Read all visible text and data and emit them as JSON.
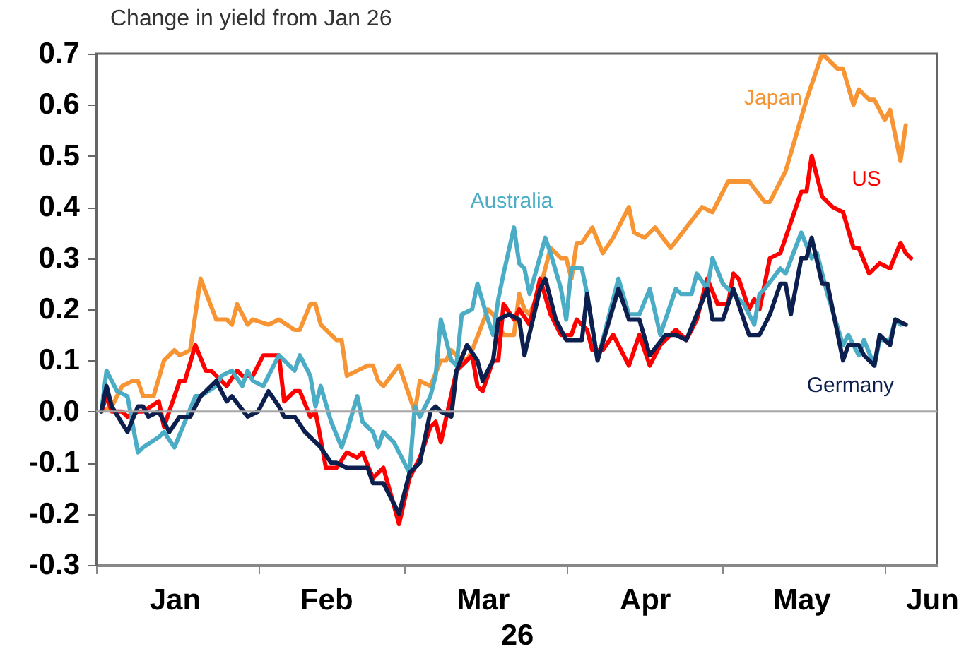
{
  "chart_data": {
    "type": "line",
    "title": "Change in yield from Jan 26",
    "xlabel": "26",
    "xlim": [
      "--01-01",
      "--06-11"
    ],
    "xticks": [
      {
        "value": "--01-01",
        "label": null
      },
      {
        "value": "--02-01",
        "label": null
      },
      {
        "value": "--03-01",
        "label": null
      },
      {
        "value": "--04-01",
        "label": null
      },
      {
        "value": "--05-01",
        "label": null
      },
      {
        "value": "--06-01",
        "label": null
      },
      {
        "value": "--01-16",
        "label": "Jan"
      },
      {
        "value": "--02-14",
        "label": "Feb"
      },
      {
        "value": "--03-16",
        "label": "Mar"
      },
      {
        "value": "--04-16",
        "label": "Apr"
      },
      {
        "value": "--05-16",
        "label": "May"
      },
      {
        "value": "--06-10",
        "label": "Jun"
      }
    ],
    "ylim": [
      -0.3,
      0.7
    ],
    "yticks": [
      -0.3,
      -0.2,
      -0.1,
      {
        "value": 0,
        "label": "0.0"
      },
      0.1,
      0.2,
      0.3,
      0.4,
      0.5,
      0.6,
      0.7
    ],
    "line_style": "solid",
    "ref_lines": [
      {
        "axis": "y",
        "value": 0,
        "color": "#a6a6a6"
      }
    ],
    "series": [
      {
        "name": "Japan",
        "color": "#f79433",
        "x": [
          "--01-02",
          "--01-04",
          "--01-06",
          "--01-08",
          "--01-09",
          "--01-10",
          "--01-12",
          "--01-14",
          "--01-16",
          "--01-17",
          "--01-19",
          "--01-21",
          "--01-24",
          "--01-26",
          "--01-27",
          "--01-28",
          "--01-30",
          "--01-31",
          "--02-03",
          "--02-05",
          "--02-08",
          "--02-09",
          "--02-11",
          "--02-12",
          "--02-13",
          "--02-14",
          "--02-16",
          "--02-17",
          "--02-18",
          "--02-20",
          "--02-22",
          "--02-23",
          "--02-24",
          "--02-25",
          "--02-28",
          "--03-03",
          "--03-04",
          "--03-06",
          "--03-08",
          "--03-09",
          "--03-10",
          "--03-11",
          "--03-13",
          "--03-14",
          "--03-17",
          "--03-18",
          "--03-20",
          "--03-22",
          "--03-23",
          "--03-24",
          "--03-25",
          "--03-27",
          "--03-29",
          "--03-31",
          "--04-01",
          "--04-02",
          "--04-03",
          "--04-04",
          "--04-06",
          "--04-08",
          "--04-10",
          "--04-13",
          "--04-14",
          "--04-16",
          "--04-18",
          "--04-21",
          "--04-24",
          "--04-27",
          "--04-29",
          "--05-02",
          "--05-06",
          "--05-09",
          "--05-10",
          "--05-13",
          "--05-15",
          "--05-17",
          "--05-20",
          "--05-21",
          "--05-23",
          "--05-24",
          "--05-26",
          "--05-27",
          "--05-29",
          "--05-30",
          "--06-01",
          "--06-02",
          "--06-04",
          "--06-05"
        ],
        "values": [
          0.0,
          0.01,
          0.05,
          0.06,
          0.06,
          0.03,
          0.03,
          0.1,
          0.12,
          0.11,
          0.12,
          0.26,
          0.18,
          0.18,
          0.17,
          0.21,
          0.17,
          0.18,
          0.17,
          0.18,
          0.16,
          0.16,
          0.21,
          0.21,
          0.17,
          0.16,
          0.14,
          0.14,
          0.07,
          0.08,
          0.09,
          0.09,
          0.06,
          0.05,
          0.09,
          0.0,
          0.06,
          0.05,
          0.1,
          0.1,
          0.12,
          0.11,
          0.1,
          0.12,
          0.2,
          0.19,
          0.15,
          0.15,
          0.23,
          0.2,
          0.19,
          0.24,
          0.32,
          0.3,
          0.3,
          0.26,
          0.33,
          0.33,
          0.36,
          0.31,
          0.34,
          0.4,
          0.35,
          0.34,
          0.36,
          0.32,
          0.36,
          0.4,
          0.39,
          0.45,
          0.45,
          0.41,
          0.41,
          0.47,
          0.54,
          0.61,
          0.7,
          0.69,
          0.67,
          0.67,
          0.6,
          0.63,
          0.61,
          0.61,
          0.57,
          0.59,
          0.49,
          0.56
        ]
      },
      {
        "name": "US",
        "color": "#ff0000",
        "x": [
          "--01-02",
          "--01-03",
          "--01-04",
          "--01-06",
          "--01-07",
          "--01-09",
          "--01-10",
          "--01-13",
          "--01-14",
          "--01-17",
          "--01-18",
          "--01-20",
          "--01-22",
          "--01-23",
          "--01-26",
          "--01-28",
          "--01-29",
          "--01-31",
          "--02-02",
          "--02-03",
          "--02-05",
          "--02-06",
          "--02-08",
          "--02-09",
          "--02-11",
          "--02-12",
          "--02-14",
          "--02-16",
          "--02-18",
          "--02-20",
          "--02-21",
          "--02-23",
          "--02-25",
          "--02-28",
          "--03-02",
          "--03-04",
          "--03-06",
          "--03-07",
          "--03-08",
          "--03-11",
          "--03-14",
          "--03-15",
          "--03-16",
          "--03-18",
          "--03-19",
          "--03-20",
          "--03-22",
          "--03-23",
          "--03-25",
          "--03-27",
          "--03-29",
          "--03-31",
          "--04-02",
          "--04-03",
          "--04-05",
          "--04-06",
          "--04-08",
          "--04-10",
          "--04-13",
          "--04-15",
          "--04-17",
          "--04-19",
          "--04-22",
          "--04-24",
          "--04-26",
          "--04-28",
          "--04-30",
          "--05-02",
          "--05-03",
          "--05-04",
          "--05-06",
          "--05-07",
          "--05-08",
          "--05-10",
          "--05-12",
          "--05-16",
          "--05-17",
          "--05-18",
          "--05-20",
          "--05-22",
          "--05-24",
          "--05-26",
          "--05-27",
          "--05-29",
          "--05-31",
          "--06-02",
          "--06-04",
          "--06-05",
          "--06-06"
        ],
        "values": [
          0.0,
          0.03,
          0.0,
          0.0,
          -0.01,
          0.0,
          0.0,
          0.02,
          -0.03,
          0.06,
          0.06,
          0.13,
          0.08,
          0.08,
          0.05,
          0.08,
          0.07,
          0.07,
          0.11,
          0.11,
          0.11,
          0.02,
          0.04,
          0.04,
          -0.01,
          0.0,
          -0.11,
          -0.11,
          -0.08,
          -0.09,
          -0.08,
          -0.13,
          -0.11,
          -0.22,
          -0.13,
          -0.09,
          -0.03,
          -0.02,
          -0.06,
          0.08,
          0.11,
          0.05,
          0.04,
          0.1,
          0.1,
          0.21,
          0.18,
          0.2,
          0.17,
          0.26,
          0.19,
          0.15,
          0.15,
          0.18,
          0.16,
          0.12,
          0.12,
          0.15,
          0.09,
          0.15,
          0.09,
          0.13,
          0.16,
          0.14,
          0.18,
          0.26,
          0.21,
          0.21,
          0.27,
          0.26,
          0.2,
          0.22,
          0.2,
          0.3,
          0.31,
          0.43,
          0.43,
          0.5,
          0.42,
          0.4,
          0.39,
          0.32,
          0.32,
          0.27,
          0.29,
          0.28,
          0.33,
          0.31,
          0.3
        ]
      },
      {
        "name": "Australia",
        "color": "#4bacc6",
        "x": [
          "--01-02",
          "--01-03",
          "--01-05",
          "--01-07",
          "--01-09",
          "--01-10",
          "--01-13",
          "--01-14",
          "--01-16",
          "--01-18",
          "--01-20",
          "--01-21",
          "--01-24",
          "--01-25",
          "--01-27",
          "--01-29",
          "--01-30",
          "--01-31",
          "--02-02",
          "--02-05",
          "--02-06",
          "--02-08",
          "--02-09",
          "--02-11",
          "--02-12",
          "--02-13",
          "--02-15",
          "--02-17",
          "--02-18",
          "--02-20",
          "--02-21",
          "--02-23",
          "--02-24",
          "--02-25",
          "--02-27",
          "--03-02",
          "--03-03",
          "--03-04",
          "--03-06",
          "--03-07",
          "--03-08",
          "--03-10",
          "--03-11",
          "--03-12",
          "--03-14",
          "--03-15",
          "--03-17",
          "--03-18",
          "--03-19",
          "--03-20",
          "--03-22",
          "--03-23",
          "--03-24",
          "--03-25",
          "--03-28",
          "--03-29",
          "--03-31",
          "--04-01",
          "--04-02",
          "--04-04",
          "--04-05",
          "--04-07",
          "--04-09",
          "--04-11",
          "--04-13",
          "--04-15",
          "--04-17",
          "--04-19",
          "--04-22",
          "--04-23",
          "--04-25",
          "--04-26",
          "--04-28",
          "--04-29",
          "--05-01",
          "--05-03",
          "--05-05",
          "--05-07",
          "--05-08",
          "--05-09",
          "--05-12",
          "--05-13",
          "--05-16",
          "--05-18",
          "--05-19",
          "--05-21",
          "--05-24",
          "--05-25",
          "--05-27",
          "--05-28",
          "--05-30",
          "--05-31",
          "--06-02",
          "--06-03",
          "--06-04"
        ],
        "values": [
          0.0,
          0.08,
          0.04,
          0.03,
          -0.08,
          -0.07,
          -0.05,
          -0.04,
          -0.07,
          -0.02,
          0.03,
          0.03,
          0.05,
          0.07,
          0.08,
          0.05,
          0.08,
          0.06,
          0.05,
          0.11,
          0.1,
          0.08,
          0.11,
          0.07,
          0.01,
          0.05,
          -0.02,
          -0.07,
          -0.04,
          0.03,
          -0.02,
          -0.04,
          -0.07,
          -0.04,
          -0.06,
          -0.12,
          0.01,
          -0.01,
          0.03,
          0.07,
          0.18,
          0.1,
          0.09,
          0.19,
          0.2,
          0.25,
          0.18,
          0.15,
          0.22,
          0.27,
          0.36,
          0.29,
          0.28,
          0.23,
          0.34,
          0.31,
          0.24,
          0.18,
          0.28,
          0.28,
          0.23,
          0.1,
          0.18,
          0.26,
          0.19,
          0.19,
          0.24,
          0.15,
          0.24,
          0.23,
          0.23,
          0.27,
          0.24,
          0.3,
          0.25,
          0.23,
          0.21,
          0.17,
          0.23,
          0.24,
          0.28,
          0.27,
          0.35,
          0.3,
          0.31,
          0.23,
          0.13,
          0.15,
          0.11,
          0.14,
          0.09,
          0.14,
          0.14,
          0.18,
          0.17
        ]
      },
      {
        "name": "Germany",
        "color": "#0d1f4f",
        "x": [
          "--01-02",
          "--01-03",
          "--01-04",
          "--01-07",
          "--01-09",
          "--01-10",
          "--01-11",
          "--01-13",
          "--01-15",
          "--01-17",
          "--01-19",
          "--01-21",
          "--01-22",
          "--01-24",
          "--01-26",
          "--01-27",
          "--01-30",
          "--02-01",
          "--02-03",
          "--02-05",
          "--02-06",
          "--02-08",
          "--02-10",
          "--02-11",
          "--02-13",
          "--02-15",
          "--02-16",
          "--02-18",
          "--02-20",
          "--02-22",
          "--02-23",
          "--02-25",
          "--02-26",
          "--02-28",
          "--03-02",
          "--03-04",
          "--03-06",
          "--03-07",
          "--03-08",
          "--03-10",
          "--03-11",
          "--03-13",
          "--03-15",
          "--03-16",
          "--03-18",
          "--03-19",
          "--03-21",
          "--03-23",
          "--03-24",
          "--03-27",
          "--03-28",
          "--03-30",
          "--04-01",
          "--04-04",
          "--04-05",
          "--04-07",
          "--04-11",
          "--04-13",
          "--04-15",
          "--04-17",
          "--04-20",
          "--04-22",
          "--04-24",
          "--04-26",
          "--04-28",
          "--04-29",
          "--05-01",
          "--05-03",
          "--05-06",
          "--05-08",
          "--05-10",
          "--05-12",
          "--05-13",
          "--05-14",
          "--05-16",
          "--05-17",
          "--05-18",
          "--05-20",
          "--05-21",
          "--05-24",
          "--05-25",
          "--05-27",
          "--05-28",
          "--05-30",
          "--05-31",
          "--06-02",
          "--06-03",
          "--06-05"
        ],
        "values": [
          0.0,
          0.05,
          0.01,
          -0.04,
          0.01,
          0.01,
          -0.01,
          0.0,
          -0.04,
          -0.01,
          -0.01,
          0.03,
          0.04,
          0.06,
          0.02,
          0.03,
          -0.01,
          0.0,
          0.04,
          0.01,
          -0.01,
          -0.01,
          -0.04,
          -0.05,
          -0.07,
          -0.1,
          -0.1,
          -0.11,
          -0.11,
          -0.11,
          -0.14,
          -0.14,
          -0.16,
          -0.2,
          -0.12,
          -0.1,
          0.0,
          0.01,
          0.0,
          -0.01,
          0.08,
          0.13,
          0.1,
          0.06,
          0.1,
          0.18,
          0.19,
          0.18,
          0.11,
          0.24,
          0.26,
          0.18,
          0.14,
          0.14,
          0.23,
          0.1,
          0.24,
          0.18,
          0.18,
          0.11,
          0.15,
          0.15,
          0.14,
          0.19,
          0.24,
          0.18,
          0.18,
          0.24,
          0.15,
          0.15,
          0.19,
          0.25,
          0.25,
          0.19,
          0.3,
          0.3,
          0.34,
          0.25,
          0.25,
          0.1,
          0.13,
          0.13,
          0.11,
          0.09,
          0.15,
          0.13,
          0.18,
          0.17
        ]
      }
    ]
  }
}
